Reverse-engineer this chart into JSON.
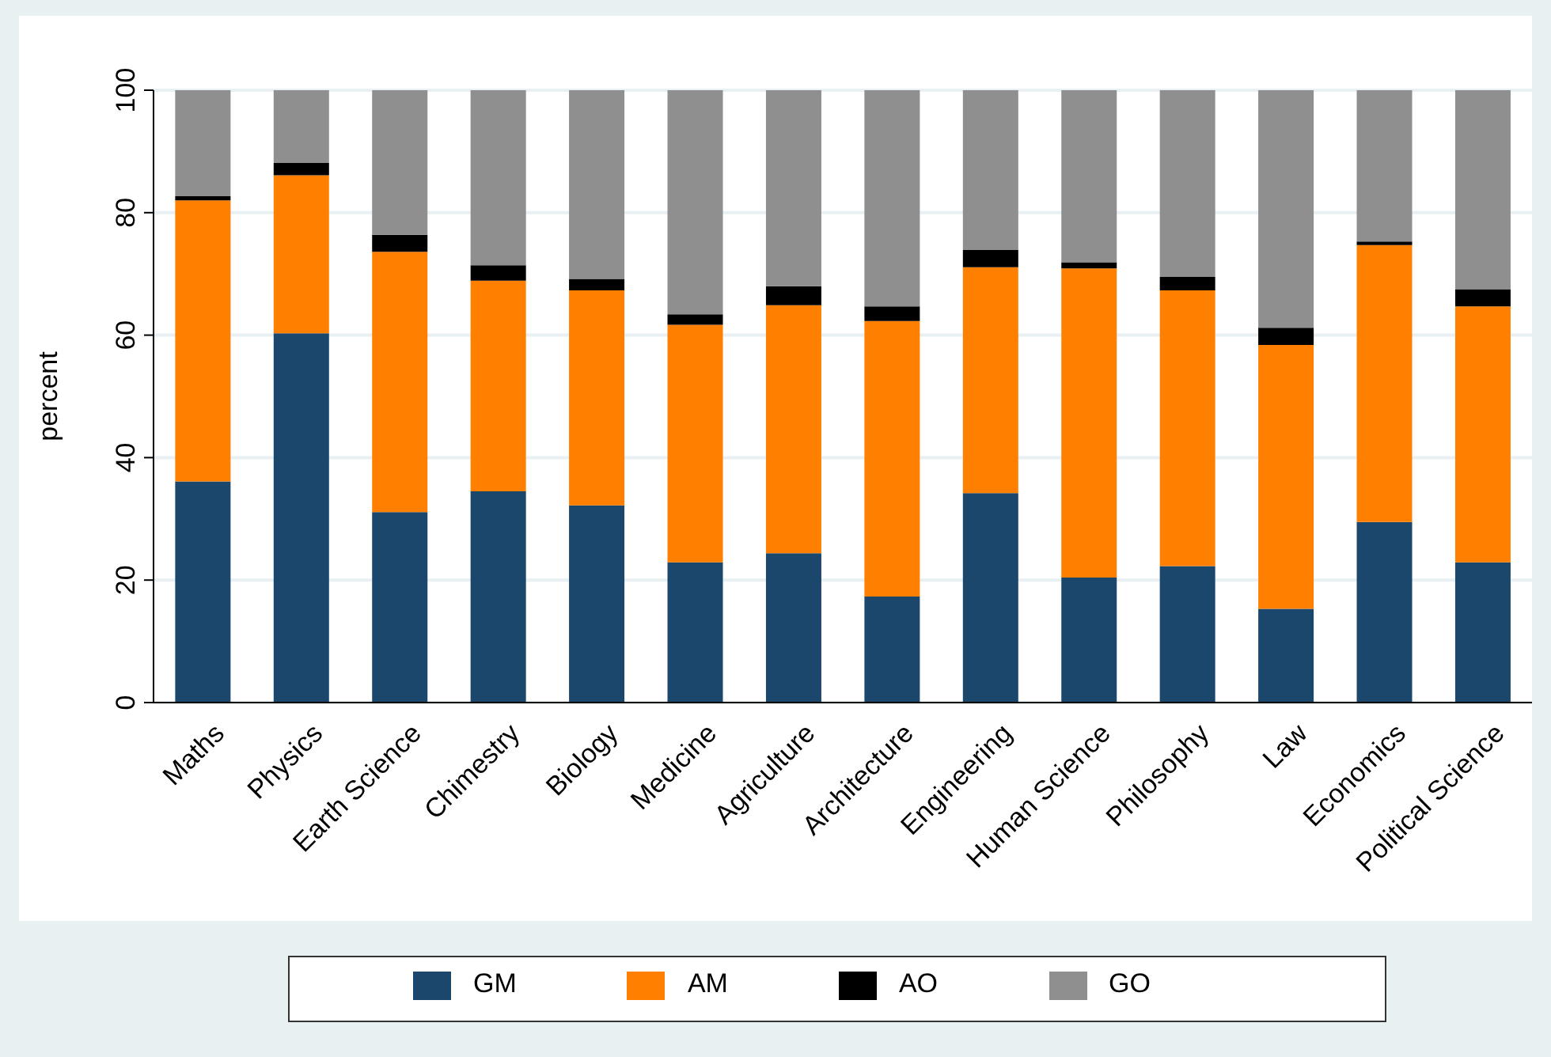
{
  "chart_data": {
    "type": "bar",
    "stacked": true,
    "ylabel": "percent",
    "categories": [
      "Maths",
      "Physics",
      "Earth Science",
      "Chimestry",
      "Biology",
      "Medicine",
      "Agriculture",
      "Architecture",
      "Engineering",
      "Human Science",
      "Philosophy",
      "Law",
      "Economics",
      "Political Science"
    ],
    "series": [
      {
        "name": "GM",
        "color": "#1c476d",
        "values": [
          36.1,
          60.3,
          31.1,
          34.5,
          32.2,
          22.9,
          24.4,
          17.3,
          34.2,
          20.4,
          22.3,
          15.3,
          29.5,
          22.9
        ]
      },
      {
        "name": "AM",
        "color": "#ff8000",
        "values": [
          45.9,
          25.8,
          42.5,
          34.4,
          35.1,
          38.8,
          40.5,
          45.0,
          36.9,
          50.5,
          45.0,
          43.1,
          45.2,
          41.8
        ]
      },
      {
        "name": "AO",
        "color": "#000000",
        "values": [
          0.7,
          2.0,
          2.8,
          2.5,
          1.9,
          1.7,
          3.1,
          2.4,
          2.8,
          1.0,
          2.2,
          2.8,
          0.6,
          2.8
        ]
      },
      {
        "name": "GO",
        "color": "#8f8f8f",
        "values": [
          17.3,
          11.9,
          23.6,
          28.6,
          30.8,
          36.6,
          32.0,
          35.3,
          26.1,
          28.1,
          30.5,
          38.8,
          24.7,
          32.5
        ]
      }
    ],
    "ylim": [
      0,
      100
    ],
    "yticks": [
      0,
      20,
      40,
      60,
      80,
      100
    ],
    "grid": "y",
    "legend": "bottom"
  }
}
